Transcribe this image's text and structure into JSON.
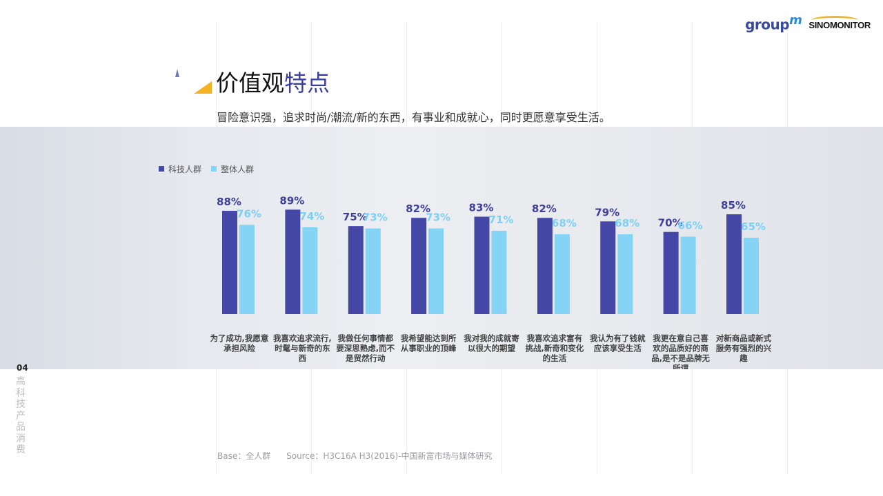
{
  "header": {
    "logo_groupm": "group",
    "logo_groupm_m": "m",
    "logo_sinomonitor": "SINOMONITOR"
  },
  "title": {
    "part1": "价值观",
    "part2": "特点"
  },
  "subtitle": "冒险意识强，追求时尚/潮流/新的东西，有事业和成就心，同时更愿意享受生活。",
  "chart_data": {
    "type": "bar",
    "categories": [
      [
        "为了成功,我愿意",
        "承担风险"
      ],
      [
        "我喜欢追求流行,",
        "时髦与新奇的东",
        "西"
      ],
      [
        "我做任何事情都",
        "要深思熟虑,而不",
        "是贸然行动"
      ],
      [
        "我希望能达到所",
        "从事职业的顶峰"
      ],
      [
        "我对我的成就寄",
        "以很大的期望"
      ],
      [
        "我喜欢追求富有",
        "挑战,新奇和变化",
        "的生活"
      ],
      [
        "我认为有了钱就",
        "应该享受生活"
      ],
      [
        "我更在意自己喜",
        "欢的品质好的商",
        "品,是不是品牌无",
        "所谓"
      ],
      [
        "对新商品或新式",
        "服务有强烈的兴",
        "趣"
      ]
    ],
    "series": [
      {
        "name": "科技人群",
        "color": "#4447a6",
        "values": [
          88,
          89,
          75,
          82,
          83,
          82,
          79,
          70,
          85
        ],
        "labels": [
          "88%",
          "89%",
          "75%",
          "82%",
          "83%",
          "82%",
          "79%",
          "70%",
          "85%"
        ]
      },
      {
        "name": "整体人群",
        "color": "#85d4f5",
        "values": [
          76,
          74,
          73,
          73,
          71,
          68,
          68,
          66,
          65
        ],
        "labels": [
          "76%",
          "74%",
          "73%",
          "73%",
          "71%",
          "68%",
          "68%",
          "66%",
          "65%"
        ]
      }
    ],
    "legend_position": "top-left",
    "grid": false
  },
  "page_number": "04",
  "section_label": "高科技产品消费",
  "footer": "Base：全人群      Source：H3C16A H3(2016)-中国新富市场与媒体研究"
}
